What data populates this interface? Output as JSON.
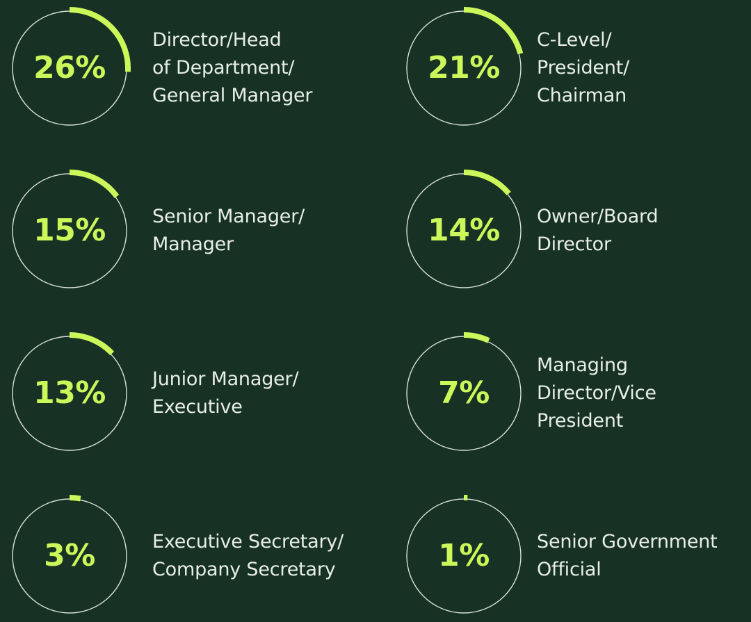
{
  "chart_data": {
    "type": "pie",
    "title": "",
    "colors": {
      "background": "#173225",
      "accent": "#cbf75a",
      "ring": "#d7dfd8",
      "text": "#e8eee6"
    },
    "items": [
      {
        "value": 26,
        "display": "26%",
        "label_lines": [
          "Director/Head",
          "of Department/",
          "General Manager"
        ]
      },
      {
        "value": 21,
        "display": "21%",
        "label_lines": [
          "C-Level/",
          "President/",
          "Chairman"
        ]
      },
      {
        "value": 15,
        "display": "15%",
        "label_lines": [
          "Senior Manager/",
          "Manager"
        ]
      },
      {
        "value": 14,
        "display": "14%",
        "label_lines": [
          "Owner/Board",
          "Director"
        ]
      },
      {
        "value": 13,
        "display": "13%",
        "label_lines": [
          "Junior Manager/",
          "Executive"
        ]
      },
      {
        "value": 7,
        "display": "7%",
        "label_lines": [
          "Managing",
          "Director/Vice",
          "President"
        ]
      },
      {
        "value": 3,
        "display": "3%",
        "label_lines": [
          "Executive Secretary/",
          "Company Secretary"
        ]
      },
      {
        "value": 1,
        "display": "1%",
        "label_lines": [
          "Senior Government",
          "Official"
        ]
      }
    ]
  }
}
